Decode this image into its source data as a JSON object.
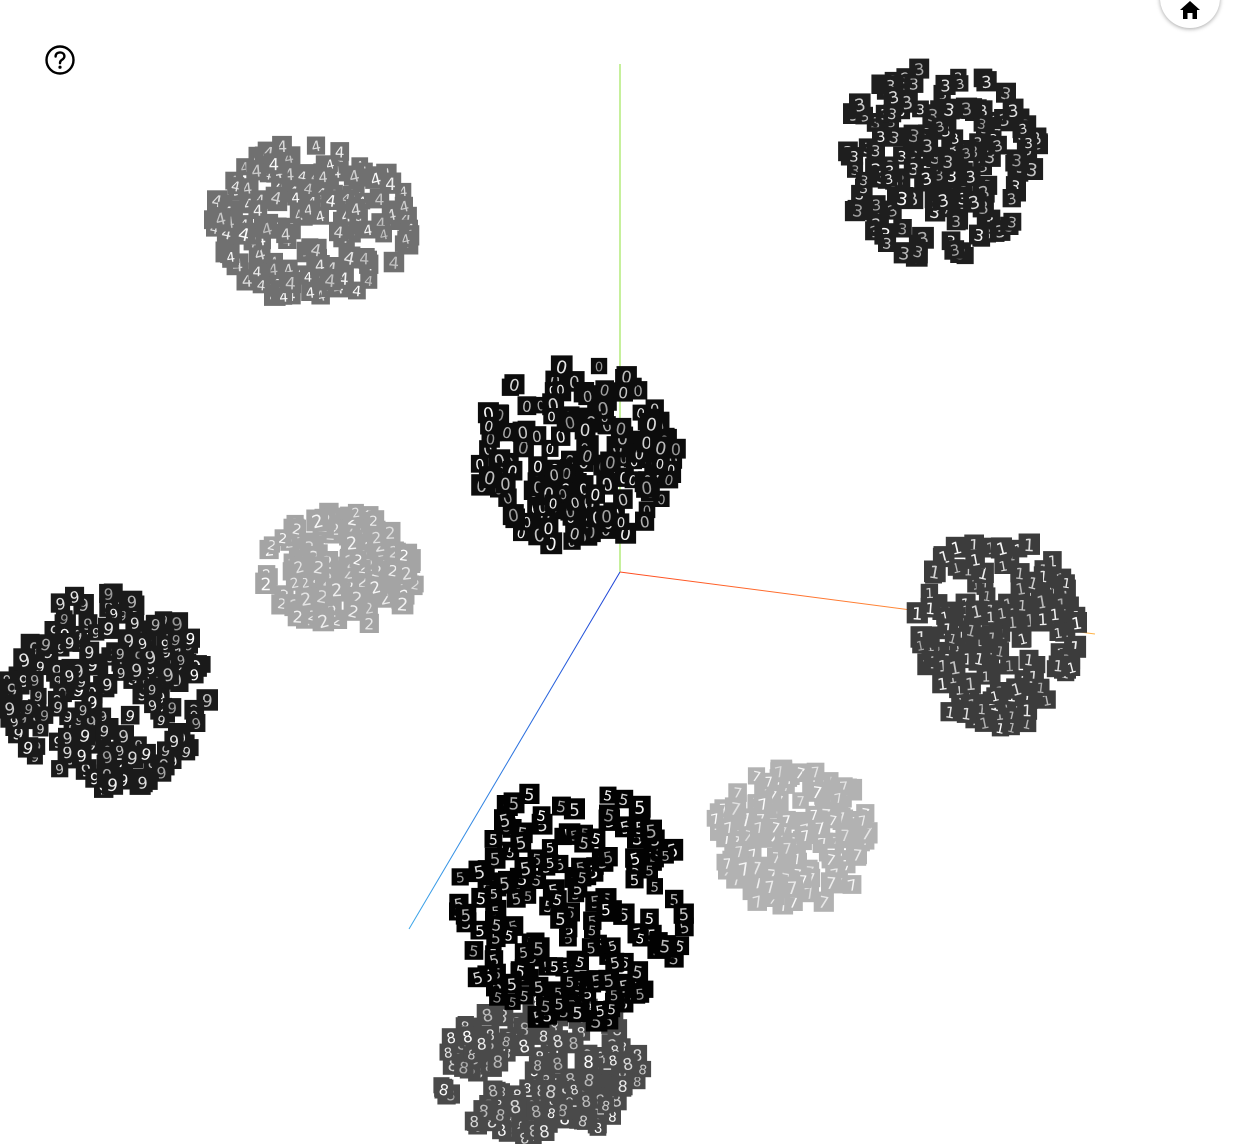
{
  "viewer": {
    "background": "#ffffff",
    "axes": {
      "x_color": "#ff4a1f",
      "x_far_color": "#ffb347",
      "y_color": "#8de03a",
      "z_color": "#1b3fd6",
      "z_far_color": "#3aa6e8"
    }
  },
  "controls": {
    "help_icon": "question-circle-icon",
    "home_icon": "home-icon"
  },
  "clusters": [
    {
      "digit": "4",
      "shade": "#707070",
      "count": 160
    },
    {
      "digit": "3",
      "shade": "#1e1e1e",
      "count": 170
    },
    {
      "digit": "0",
      "shade": "#0c0c0c",
      "count": 170
    },
    {
      "digit": "2",
      "shade": "#a4a4a4",
      "count": 140
    },
    {
      "digit": "1",
      "shade": "#3c3c3c",
      "count": 160
    },
    {
      "digit": "9",
      "shade": "#1a1a1a",
      "count": 190
    },
    {
      "digit": "7",
      "shade": "#b2b2b2",
      "count": 150
    },
    {
      "digit": "5",
      "shade": "#020202",
      "count": 190
    },
    {
      "digit": "8",
      "shade": "#4a4a4a",
      "count": 160
    }
  ]
}
